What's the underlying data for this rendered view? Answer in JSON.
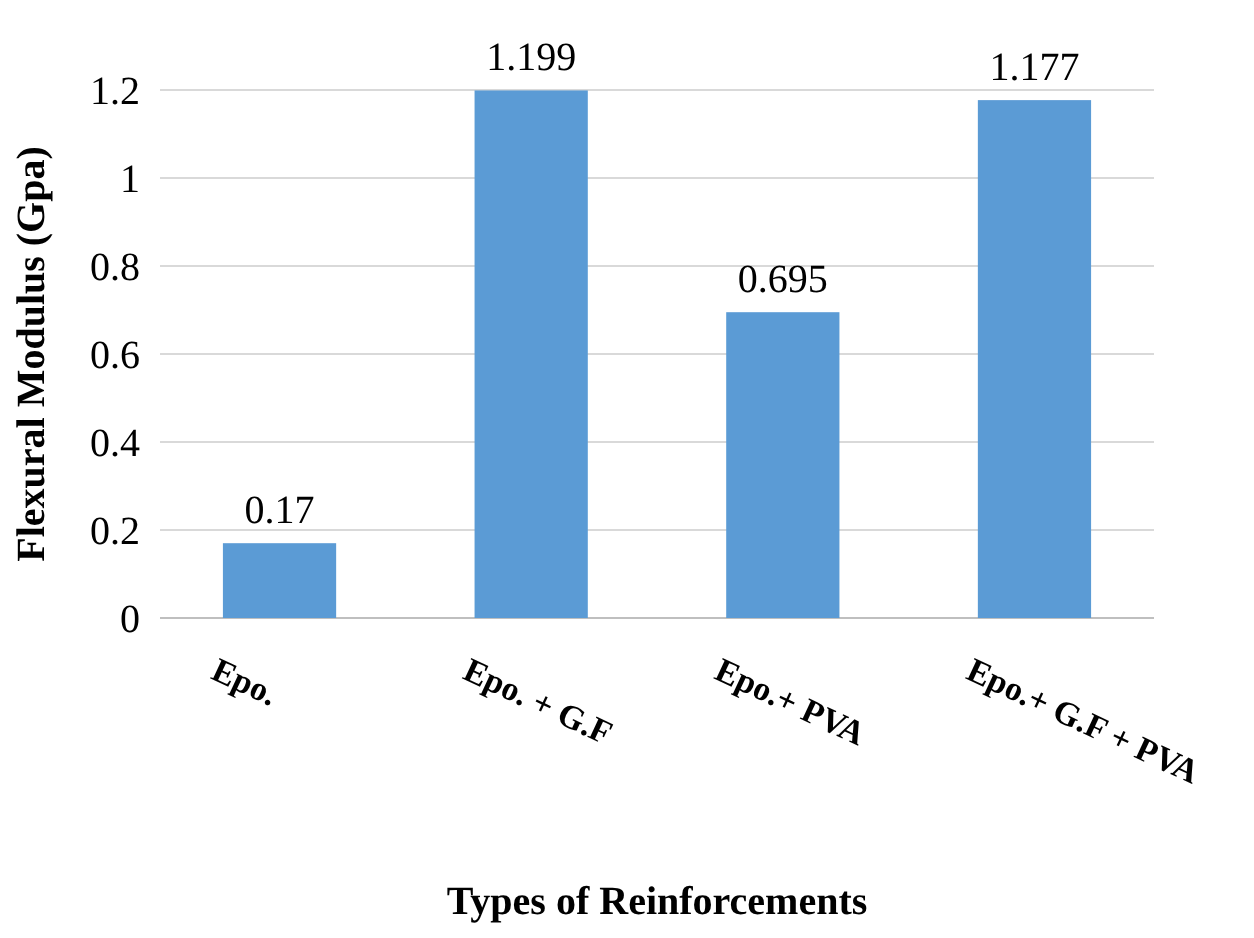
{
  "chart_data": {
    "type": "bar",
    "xlabel": "Types of Reinforcements",
    "ylabel": "Flexural Modulus (Gpa)",
    "categories": [
      "Epo.",
      "Epo. + G.F",
      "Epo.+ PVA",
      "Epo.+ G.F + PVA"
    ],
    "values": [
      0.17,
      1.199,
      0.695,
      1.177
    ],
    "color": "#5b9bd5",
    "ylim": [
      0,
      1.2
    ],
    "yticks": [
      0,
      0.2,
      0.4,
      0.6,
      0.8,
      1,
      1.2
    ],
    "grid": "y",
    "data_labels": true
  }
}
